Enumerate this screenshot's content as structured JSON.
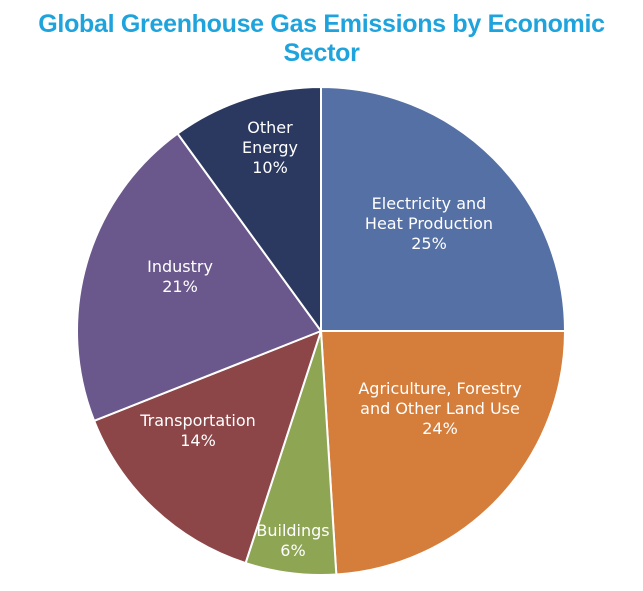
{
  "colors": {
    "title": "#1fa3dd",
    "electricity": "#5570a4",
    "agriculture": "#d57d3a",
    "buildings": "#8ea554",
    "transportation": "#8c4648",
    "industry": "#6a588c",
    "other_energy": "#2b3961",
    "slice_border": "#ffffff",
    "label_text": "#ffffff"
  },
  "chart_data": {
    "type": "pie",
    "title": "Global Greenhouse Gas Emissions by Economic Sector",
    "start_angle_deg": 0,
    "direction": "clockwise",
    "slices": [
      {
        "id": "electricity",
        "label_lines": [
          "Electricity and",
          "Heat Production"
        ],
        "value": 25,
        "value_label": "25%",
        "color": "#5570a4"
      },
      {
        "id": "agriculture",
        "label_lines": [
          "Agriculture, Forestry",
          "and Other Land Use"
        ],
        "value": 24,
        "value_label": "24%",
        "color": "#d57d3a"
      },
      {
        "id": "buildings",
        "label_lines": [
          "Buildings"
        ],
        "value": 6,
        "value_label": "6%",
        "color": "#8ea554"
      },
      {
        "id": "transportation",
        "label_lines": [
          "Transportation"
        ],
        "value": 14,
        "value_label": "14%",
        "color": "#8c4648"
      },
      {
        "id": "industry",
        "label_lines": [
          "Industry"
        ],
        "value": 21,
        "value_label": "21%",
        "color": "#6a588c"
      },
      {
        "id": "other-energy",
        "label_lines": [
          "Other",
          "Energy"
        ],
        "value": 10,
        "value_label": "10%",
        "color": "#2b3961"
      }
    ]
  }
}
